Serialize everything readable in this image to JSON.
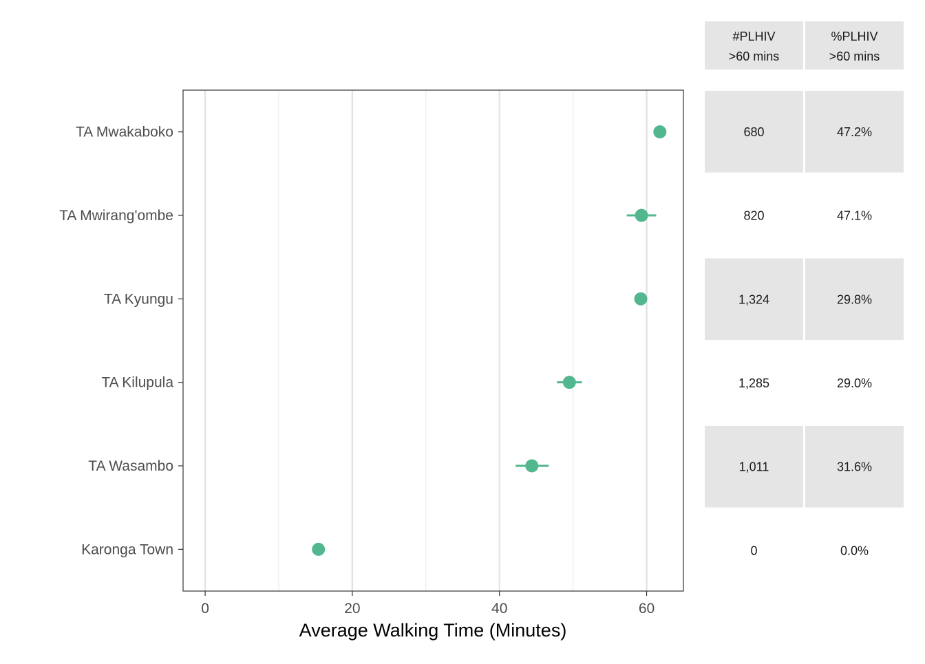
{
  "chart_data": {
    "type": "scatter",
    "subtype": "dot-and-error-bar",
    "xlabel": "Average Walking Time (Minutes)",
    "xlim": [
      -3,
      65
    ],
    "x_ticks": [
      0,
      20,
      40,
      60
    ],
    "x_minor_grid": [
      10,
      30,
      50
    ],
    "grid": "vertical",
    "point_color": "#52b78f",
    "categories": [
      "TA Mwakaboko",
      "TA Mwirang'ombe",
      "TA Kyungu",
      "TA Kilupula",
      "TA Wasambo",
      "Karonga Town"
    ],
    "points": [
      {
        "category": "TA Mwakaboko",
        "x": 61.8,
        "xmin": 61.8,
        "xmax": 61.8
      },
      {
        "category": "TA Mwirang'ombe",
        "x": 59.3,
        "xmin": 57.3,
        "xmax": 61.3
      },
      {
        "category": "TA Kyungu",
        "x": 59.2,
        "xmin": 59.2,
        "xmax": 59.2
      },
      {
        "category": "TA Kilupula",
        "x": 49.5,
        "xmin": 47.8,
        "xmax": 51.2
      },
      {
        "category": "TA Wasambo",
        "x": 44.4,
        "xmin": 42.2,
        "xmax": 46.7
      },
      {
        "category": "Karonga Town",
        "x": 15.4,
        "xmin": 15.4,
        "xmax": 15.4
      }
    ]
  },
  "table": {
    "headers": [
      {
        "line1": "#PLHIV",
        "line2": ">60 mins"
      },
      {
        "line1": "%PLHIV",
        "line2": ">60 mins"
      }
    ],
    "rows": [
      {
        "count": "680",
        "pct": "47.2%",
        "shaded": true
      },
      {
        "count": "820",
        "pct": "47.1%",
        "shaded": false
      },
      {
        "count": "1,324",
        "pct": "29.8%",
        "shaded": true
      },
      {
        "count": "1,285",
        "pct": "29.0%",
        "shaded": false
      },
      {
        "count": "1,011",
        "pct": "31.6%",
        "shaded": true
      },
      {
        "count": "0",
        "pct": "0.0%",
        "shaded": false
      }
    ],
    "shade_color": "#e5e5e5"
  }
}
